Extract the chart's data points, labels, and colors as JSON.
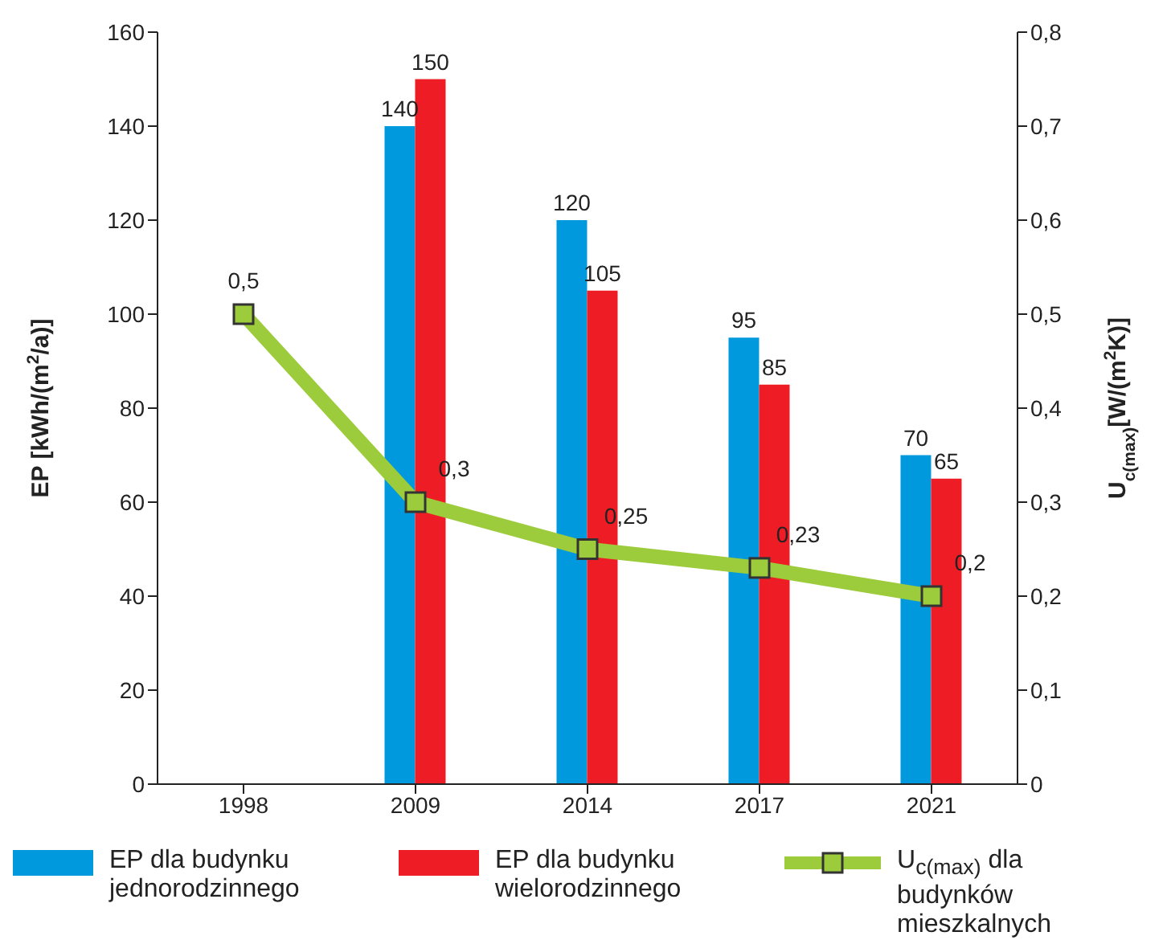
{
  "chart_data": {
    "type": "bar",
    "categories": [
      "1998",
      "2009",
      "2014",
      "2017",
      "2021"
    ],
    "ylabel": "EP [kWh/(m$^{2}$/a)]",
    "y2label": "U$_{c(max)}$[W/(m$^{2}$K)]",
    "ylim": [
      0,
      160
    ],
    "yticks": [
      0,
      20,
      40,
      60,
      80,
      100,
      120,
      140,
      160
    ],
    "y2lim": [
      0,
      0.8
    ],
    "y2ticks": [
      0,
      {
        "value": 0.1,
        "label": "0,1"
      },
      {
        "value": 0.2,
        "label": "0,2"
      },
      {
        "value": 0.3,
        "label": "0,3"
      },
      {
        "value": 0.4,
        "label": "0,4"
      },
      {
        "value": 0.5,
        "label": "0,5"
      },
      {
        "value": 0.6,
        "label": "0,6"
      },
      {
        "value": 0.7,
        "label": "0,7"
      },
      {
        "value": 0.8,
        "label": "0,8"
      }
    ],
    "series": [
      {
        "name": "EP dla budynku jednorodzinnego",
        "color": "#0099dd",
        "values": [
          null,
          140,
          120,
          95,
          70
        ],
        "value_labels": [
          null,
          "140",
          "120",
          "95",
          "70"
        ]
      },
      {
        "name": "EP dla budynku wielorodzinnego",
        "color": "#ee1c25",
        "values": [
          null,
          150,
          105,
          85,
          65
        ],
        "value_labels": [
          null,
          "150",
          "105",
          "85",
          "65"
        ]
      },
      {
        "name": "U$_{c(max)}$ dla budynków mieszkalnych",
        "type": "line",
        "axis": "y2",
        "color": "#9ccb3b",
        "values": [
          0.5,
          0.3,
          0.25,
          0.23,
          0.2
        ],
        "value_labels": [
          "0,5",
          "0,3",
          "0,25",
          "0,23",
          "0,2"
        ]
      }
    ],
    "marker": "square",
    "grid": false,
    "legend": "bottom"
  }
}
